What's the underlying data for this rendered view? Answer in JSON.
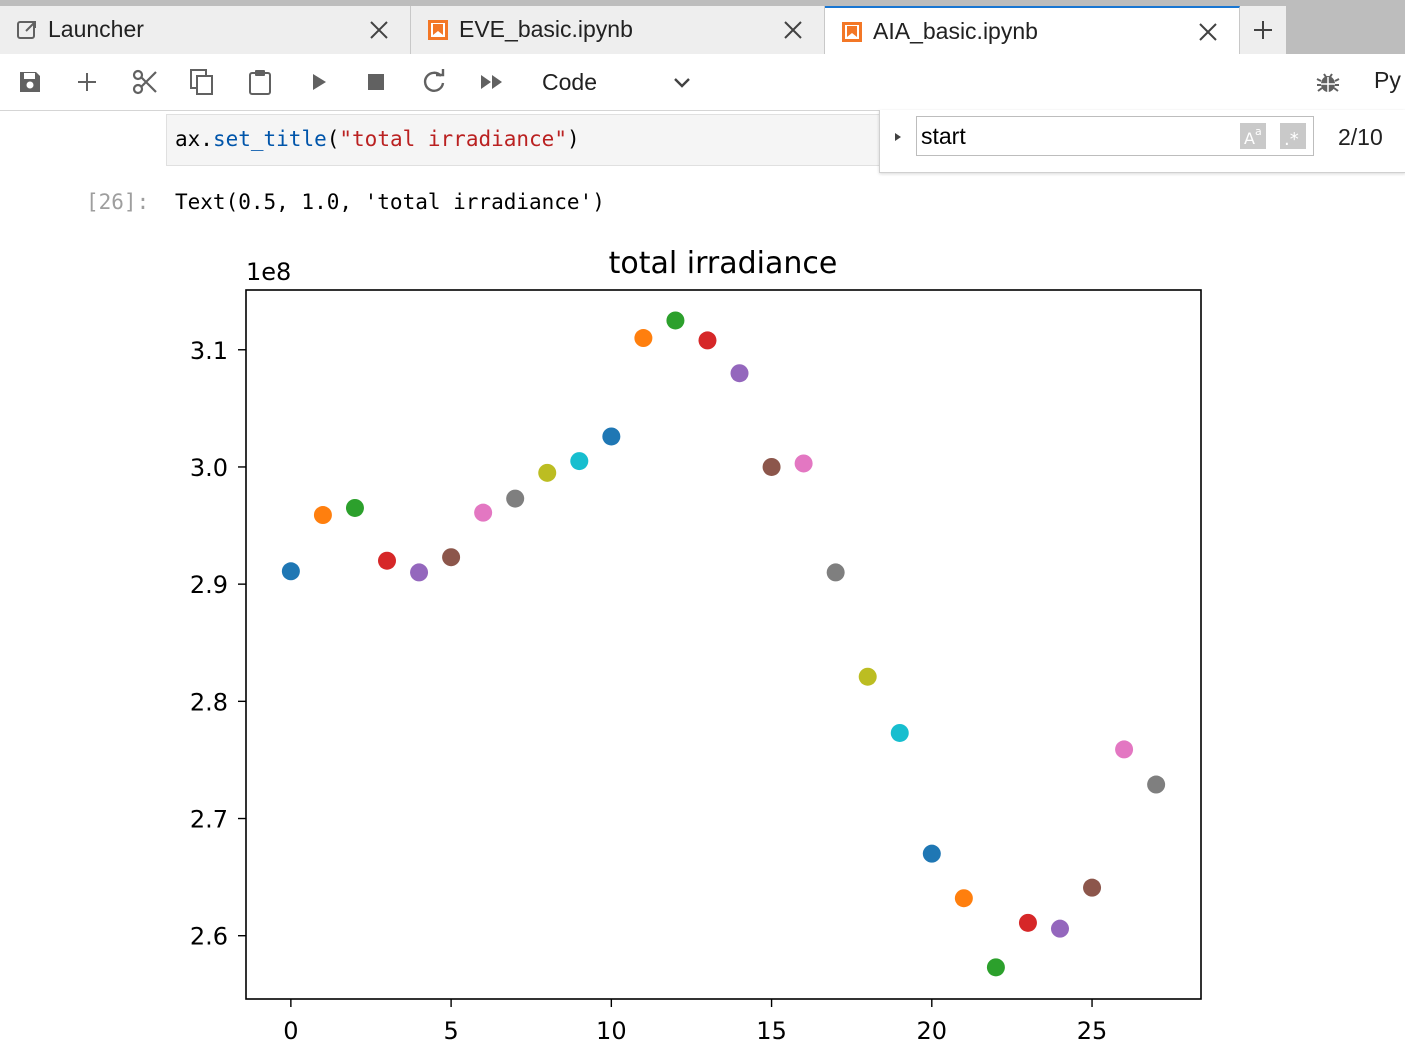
{
  "tabs": [
    {
      "label": "Launcher",
      "icon": "launcher-icon",
      "active": false
    },
    {
      "label": "EVE_basic.ipynb",
      "icon": "notebook-icon",
      "active": false
    },
    {
      "label": "AIA_basic.ipynb",
      "icon": "notebook-icon",
      "active": true
    }
  ],
  "toolbar": {
    "cell_type": "Code",
    "kernel_name": "Py",
    "icons": [
      "save-icon",
      "add-cell-icon",
      "cut-icon",
      "copy-icon",
      "paste-icon",
      "run-icon",
      "stop-icon",
      "restart-icon",
      "run-all-icon",
      "debugger-icon"
    ]
  },
  "code_cell": {
    "code_prefix": "ax.",
    "code_fn": "set_title",
    "code_open": "(",
    "code_string": "\"total irradiance\"",
    "code_close": ")"
  },
  "output_cell": {
    "prompt": "[26]:",
    "text": "Text(0.5, 1.0, 'total irradiance')"
  },
  "find": {
    "query": "start",
    "count": "2/10"
  },
  "chart_data": {
    "type": "scatter",
    "title": "total irradiance",
    "offset_label": "1e8",
    "xlabel": "",
    "ylabel": "",
    "xlim": [
      -1.4,
      28.4
    ],
    "ylim": [
      2.546,
      3.151
    ],
    "xticks": [
      0,
      5,
      10,
      15,
      20,
      25
    ],
    "yticks": [
      2.6,
      2.7,
      2.8,
      2.9,
      3.0,
      3.1
    ],
    "ytick_labels": [
      "2.6",
      "2.7",
      "2.8",
      "2.9",
      "3.0",
      "3.1"
    ],
    "grid": false,
    "x": [
      0,
      1,
      2,
      3,
      4,
      5,
      6,
      7,
      8,
      9,
      10,
      11,
      12,
      13,
      14,
      15,
      16,
      17,
      18,
      19,
      20,
      21,
      22,
      23,
      24,
      25,
      26,
      27
    ],
    "y": [
      2.911,
      2.959,
      2.965,
      2.92,
      2.91,
      2.923,
      2.961,
      2.973,
      2.995,
      3.005,
      3.026,
      3.11,
      3.125,
      3.108,
      3.08,
      3.0,
      3.003,
      2.91,
      2.821,
      2.773,
      2.67,
      2.632,
      2.573,
      2.611,
      2.606,
      2.641,
      2.759,
      2.729
    ],
    "colors": [
      "#1f77b4",
      "#ff7f0e",
      "#2ca02c",
      "#d62728",
      "#9467bd",
      "#8c564b",
      "#e377c2",
      "#7f7f7f",
      "#bcbd22",
      "#17becf",
      "#1f77b4",
      "#ff7f0e",
      "#2ca02c",
      "#d62728",
      "#9467bd",
      "#8c564b",
      "#e377c2",
      "#7f7f7f",
      "#bcbd22",
      "#17becf",
      "#1f77b4",
      "#ff7f0e",
      "#2ca02c",
      "#d62728",
      "#9467bd",
      "#8c564b",
      "#e377c2",
      "#7f7f7f"
    ]
  }
}
